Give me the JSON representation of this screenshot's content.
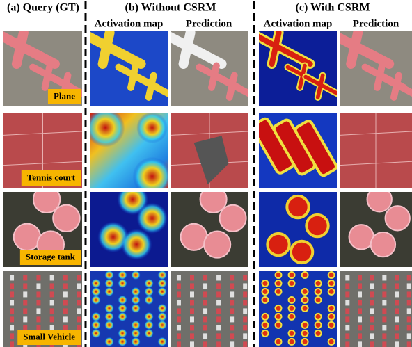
{
  "columns": [
    {
      "title": "(a) Query (GT)"
    },
    {
      "title": "(b) Without CSRM",
      "subtitles": [
        "Activation map",
        "Prediction"
      ]
    },
    {
      "title": "(c) With CSRM",
      "subtitles": [
        "Activation map",
        "Prediction"
      ]
    }
  ],
  "rows": [
    {
      "label": "Plane"
    },
    {
      "label": "Tennis court"
    },
    {
      "label": "Storage tank"
    },
    {
      "label": "Small Vehicle"
    }
  ]
}
